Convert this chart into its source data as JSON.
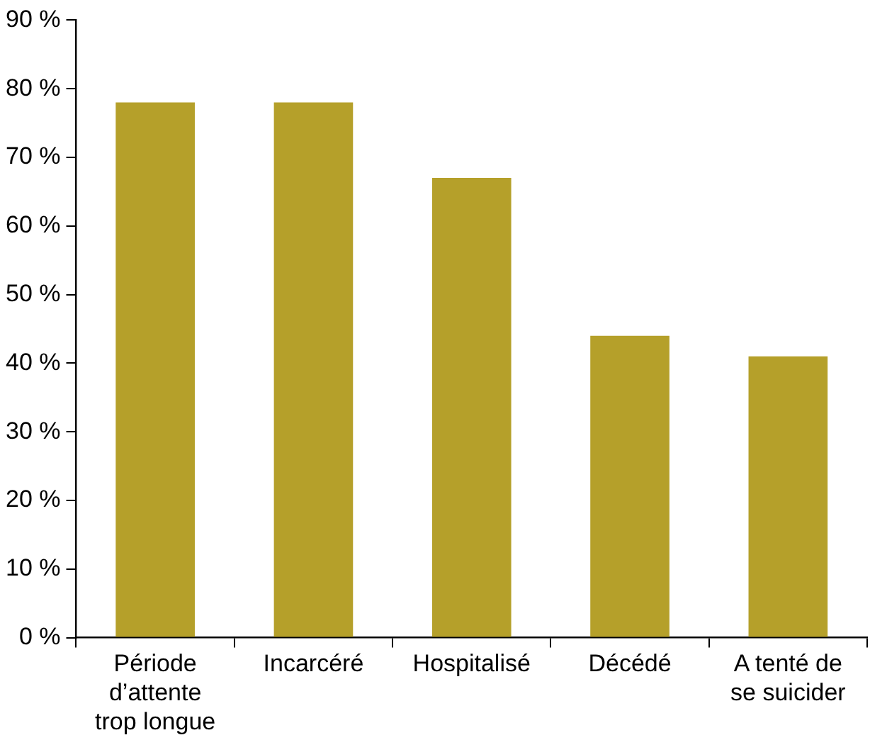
{
  "chart_data": {
    "type": "bar",
    "categories": [
      "Période\nd’attente\ntrop longue",
      "Incarcéré",
      "Hospitalisé",
      "Décédé",
      "A tenté de\nse suicider"
    ],
    "values": [
      78,
      78,
      67,
      44,
      41
    ],
    "color": "#b5a02a",
    "ylim": [
      0,
      90
    ],
    "yticks": [
      {
        "value": 0,
        "label": "0 %"
      },
      {
        "value": 10,
        "label": "10 %"
      },
      {
        "value": 20,
        "label": "20 %"
      },
      {
        "value": 30,
        "label": "30 %"
      },
      {
        "value": 40,
        "label": "40 %"
      },
      {
        "value": 50,
        "label": "50 %"
      },
      {
        "value": 60,
        "label": "60 %"
      },
      {
        "value": 70,
        "label": "70 %"
      },
      {
        "value": 80,
        "label": "80 %"
      },
      {
        "value": 90,
        "label": "90 %"
      }
    ],
    "grid": false,
    "legend": false
  }
}
